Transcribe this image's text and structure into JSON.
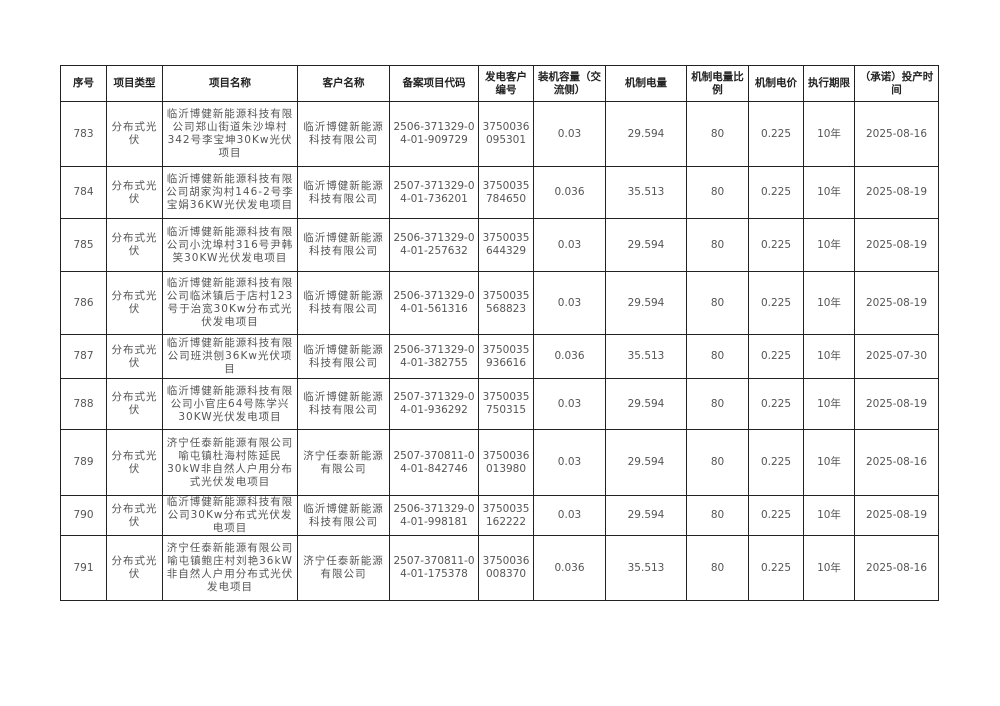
{
  "table": {
    "headers": [
      "序号",
      "项目类型",
      "项目名称",
      "客户名称",
      "备案项目代码",
      "发电客户编号",
      "装机容量（交流侧）",
      "机制电量",
      "机制电量比例",
      "机制电价",
      "执行期限",
      "（承诺）投产时间"
    ],
    "rows": [
      [
        "783",
        "分布式光伏",
        "临沂博健新能源科技有限公司郑山街道朱沙埠村342号李宝坤30Kw光伏项目",
        "临沂博健新能源科技有限公司",
        "2506-371329-04-01-909729",
        "3750036095301",
        "0.03",
        "29.594",
        "80",
        "0.225",
        "10年",
        "2025-08-16"
      ],
      [
        "784",
        "分布式光伏",
        "临沂博健新能源科技有限公司胡家沟村146-2号李宝娟36KW光伏发电项目",
        "临沂博健新能源科技有限公司",
        "2507-371329-04-01-736201",
        "3750035784650",
        "0.036",
        "35.513",
        "80",
        "0.225",
        "10年",
        "2025-08-19"
      ],
      [
        "785",
        "分布式光伏",
        "临沂博健新能源科技有限公司小沈埠村316号尹韩笑30KW光伏发电项目",
        "临沂博健新能源科技有限公司",
        "2506-371329-04-01-257632",
        "3750035644329",
        "0.03",
        "29.594",
        "80",
        "0.225",
        "10年",
        "2025-08-19"
      ],
      [
        "786",
        "分布式光伏",
        "临沂博健新能源科技有限公司临沭镇后于店村123号于治宽30Kw分布式光伏发电项目",
        "临沂博健新能源科技有限公司",
        "2506-371329-04-01-561316",
        "3750035568823",
        "0.03",
        "29.594",
        "80",
        "0.225",
        "10年",
        "2025-08-19"
      ],
      [
        "787",
        "分布式光伏",
        "临沂博健新能源科技有限公司班洪刨36Kw光伏项目",
        "临沂博健新能源科技有限公司",
        "2506-371329-04-01-382755",
        "3750035936616",
        "0.036",
        "35.513",
        "80",
        "0.225",
        "10年",
        "2025-07-30"
      ],
      [
        "788",
        "分布式光伏",
        "临沂博健新能源科技有限公司小官庄64号陈学兴30KW光伏发电项目",
        "临沂博健新能源科技有限公司",
        "2507-371329-04-01-936292",
        "3750035750315",
        "0.03",
        "29.594",
        "80",
        "0.225",
        "10年",
        "2025-08-19"
      ],
      [
        "789",
        "分布式光伏",
        "济宁任泰新能源有限公司喻屯镇杜海村陈延民30kW非自然人户用分布式光伏发电项目",
        "济宁任泰新能源有限公司",
        "2507-370811-04-01-842746",
        "3750036013980",
        "0.03",
        "29.594",
        "80",
        "0.225",
        "10年",
        "2025-08-16"
      ],
      [
        "790",
        "分布式光伏",
        "临沂博健新能源科技有限公司30Kw分布式光伏发电项目",
        "临沂博健新能源科技有限公司",
        "2506-371329-04-01-998181",
        "3750035162222",
        "0.03",
        "29.594",
        "80",
        "0.225",
        "10年",
        "2025-08-19"
      ],
      [
        "791",
        "分布式光伏",
        "济宁任泰新能源有限公司喻屯镇鲍庄村刘艳36kW非自然人户用分布式光伏发电项目",
        "济宁任泰新能源有限公司",
        "2507-370811-04-01-175378",
        "3750036008370",
        "0.036",
        "35.513",
        "80",
        "0.225",
        "10年",
        "2025-08-16"
      ]
    ]
  }
}
